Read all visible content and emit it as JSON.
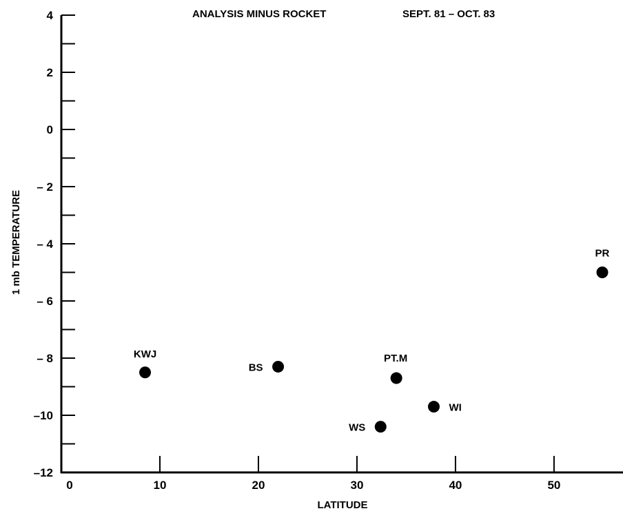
{
  "chart_data": {
    "type": "scatter",
    "title": "ANALYSIS MINUS ROCKET",
    "subtitle": "SEPT. 81 – OCT. 83",
    "xlabel": "LATITUDE",
    "ylabel": "1 mb TEMPERATURE",
    "xlim": [
      0,
      57
    ],
    "ylim": [
      -12,
      4
    ],
    "x_ticks": [
      0,
      10,
      20,
      30,
      40,
      50
    ],
    "x_tick_labels": [
      "0",
      "10",
      "20",
      "30",
      "40",
      "50"
    ],
    "y_ticks": [
      4,
      2,
      0,
      -2,
      -4,
      -6,
      -8,
      -10,
      -12
    ],
    "y_tick_labels": [
      "4",
      "2",
      "0",
      "– 2",
      "– 4",
      "– 6",
      "– 8",
      "–10",
      "–12"
    ],
    "grid": false,
    "points": [
      {
        "label": "KWJ",
        "x": 8.5,
        "y": -8.5
      },
      {
        "label": "BS",
        "x": 22,
        "y": -8.3
      },
      {
        "label": "PT.M",
        "x": 34,
        "y": -8.7
      },
      {
        "label": "WI",
        "x": 37.8,
        "y": -9.7
      },
      {
        "label": "WS",
        "x": 32.4,
        "y": -10.4
      },
      {
        "label": "PR",
        "x": 54.9,
        "y": -5
      }
    ]
  }
}
